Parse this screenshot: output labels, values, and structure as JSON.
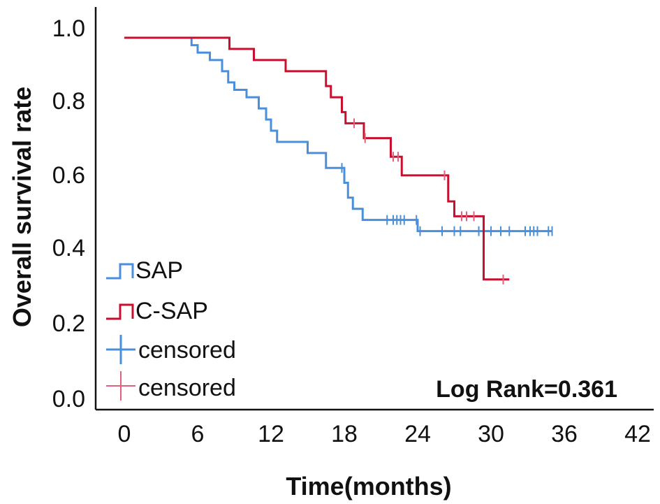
{
  "chart_data": {
    "type": "line",
    "subtype": "kaplan-meier-step",
    "title": "",
    "xlabel": "Time(months)",
    "ylabel": "Overall survival rate",
    "xlim": [
      -3,
      42
    ],
    "ylim": [
      0,
      1.05
    ],
    "xticks": [
      0,
      6,
      12,
      18,
      24,
      30,
      36,
      42
    ],
    "yticks": [
      "0.0",
      "0.2",
      "0.4",
      "0.6",
      "0.8",
      "1.0"
    ],
    "annotation": "Log Rank=0.361",
    "legend_position": "bottom-left",
    "legend": [
      {
        "label": "SAP",
        "kind": "step",
        "series": "SAP"
      },
      {
        "label": "C-SAP",
        "kind": "step",
        "series": "C-SAP"
      },
      {
        "label": "censored",
        "kind": "censor",
        "series": "SAP"
      },
      {
        "label": "censored",
        "kind": "censor",
        "series": "C-SAP"
      }
    ],
    "series": [
      {
        "name": "SAP",
        "color": "#4a8fdc",
        "censor_color": "#4a8fdc",
        "steps": [
          [
            0,
            1.0
          ],
          [
            5.5,
            0.98
          ],
          [
            6.0,
            0.96
          ],
          [
            7.0,
            0.94
          ],
          [
            8.0,
            0.91
          ],
          [
            8.5,
            0.88
          ],
          [
            9.0,
            0.86
          ],
          [
            10.0,
            0.84
          ],
          [
            11.0,
            0.81
          ],
          [
            11.6,
            0.78
          ],
          [
            12.0,
            0.75
          ],
          [
            12.5,
            0.72
          ],
          [
            15.0,
            0.69
          ],
          [
            16.5,
            0.65
          ],
          [
            18.0,
            0.61
          ],
          [
            18.3,
            0.57
          ],
          [
            18.7,
            0.54
          ],
          [
            19.5,
            0.51
          ],
          [
            24.0,
            0.48
          ],
          [
            35.0,
            0.48
          ]
        ],
        "censored": [
          [
            17.8,
            0.65
          ],
          [
            21.5,
            0.51
          ],
          [
            22.0,
            0.51
          ],
          [
            22.3,
            0.51
          ],
          [
            22.6,
            0.51
          ],
          [
            22.9,
            0.51
          ],
          [
            23.9,
            0.51
          ],
          [
            24.2,
            0.48
          ],
          [
            26.0,
            0.48
          ],
          [
            27.0,
            0.48
          ],
          [
            27.5,
            0.48
          ],
          [
            29.0,
            0.48
          ],
          [
            30.0,
            0.48
          ],
          [
            30.8,
            0.48
          ],
          [
            31.5,
            0.48
          ],
          [
            32.8,
            0.48
          ],
          [
            33.2,
            0.48
          ],
          [
            33.5,
            0.48
          ],
          [
            33.8,
            0.48
          ],
          [
            34.7,
            0.48
          ],
          [
            35.0,
            0.48
          ]
        ]
      },
      {
        "name": "C-SAP",
        "color": "#c8102e",
        "censor_color": "#e0607e",
        "steps": [
          [
            0,
            1.0
          ],
          [
            8.6,
            0.97
          ],
          [
            10.6,
            0.94
          ],
          [
            13.2,
            0.91
          ],
          [
            16.5,
            0.87
          ],
          [
            16.9,
            0.84
          ],
          [
            17.8,
            0.8
          ],
          [
            18.1,
            0.77
          ],
          [
            19.6,
            0.73
          ],
          [
            21.8,
            0.68
          ],
          [
            22.7,
            0.63
          ],
          [
            26.5,
            0.56
          ],
          [
            27.0,
            0.52
          ],
          [
            29.4,
            0.35
          ],
          [
            31.5,
            0.35
          ]
        ],
        "censored": [
          [
            18.8,
            0.77
          ],
          [
            19.7,
            0.73
          ],
          [
            22.0,
            0.68
          ],
          [
            22.4,
            0.68
          ],
          [
            26.2,
            0.63
          ],
          [
            27.6,
            0.52
          ],
          [
            28.0,
            0.52
          ],
          [
            28.6,
            0.52
          ],
          [
            31.0,
            0.35
          ]
        ]
      }
    ]
  }
}
